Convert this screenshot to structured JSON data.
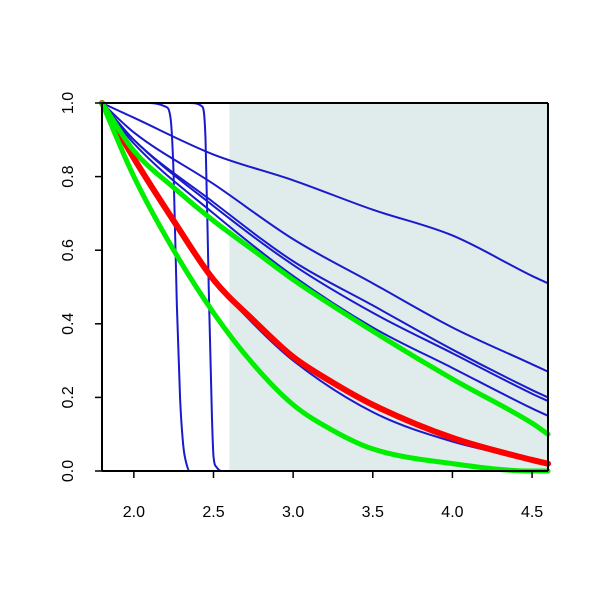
{
  "chart_data": {
    "type": "line",
    "title": "",
    "xlabel": "",
    "ylabel": "",
    "xlim": [
      1.8,
      4.6
    ],
    "ylim": [
      0.0,
      1.0
    ],
    "x_ticks": [
      2.0,
      2.5,
      3.0,
      3.5,
      4.0,
      4.5
    ],
    "x_tick_labels": [
      "2.0",
      "2.5",
      "3.0",
      "3.5",
      "4.0",
      "4.5"
    ],
    "y_ticks": [
      0.0,
      0.2,
      0.4,
      0.6,
      0.8,
      1.0
    ],
    "y_tick_labels": [
      "0.0",
      "0.2",
      "0.4",
      "0.6",
      "0.8",
      "1.0"
    ],
    "shaded_region": {
      "x_start": 2.6,
      "x_end": 4.6,
      "color": "#e0ecec"
    },
    "grid": false,
    "legend": "none",
    "colors": {
      "blue": "#1a1acd",
      "red": "#ff0000",
      "green": "#00ee00",
      "frame": "#000000"
    },
    "series": [
      {
        "color": "blue",
        "width": 2,
        "x": [
          1.8,
          2.0,
          2.5,
          3.0,
          3.5,
          4.0,
          4.5,
          4.6
        ],
        "y": [
          1.0,
          0.96,
          0.86,
          0.79,
          0.71,
          0.64,
          0.53,
          0.51
        ]
      },
      {
        "color": "blue",
        "width": 2,
        "x": [
          1.8,
          2.0,
          2.5,
          3.0,
          3.5,
          4.0,
          4.5,
          4.6
        ],
        "y": [
          1.0,
          0.92,
          0.78,
          0.63,
          0.51,
          0.39,
          0.29,
          0.27
        ]
      },
      {
        "color": "blue",
        "width": 2,
        "x": [
          1.8,
          2.0,
          2.5,
          3.0,
          3.5,
          4.0,
          4.5,
          4.6
        ],
        "y": [
          1.0,
          0.9,
          0.73,
          0.57,
          0.45,
          0.33,
          0.22,
          0.2
        ]
      },
      {
        "color": "blue",
        "width": 2,
        "x": [
          1.8,
          2.0,
          2.5,
          3.0,
          3.5,
          4.0,
          4.5,
          4.6
        ],
        "y": [
          1.0,
          0.9,
          0.72,
          0.56,
          0.43,
          0.32,
          0.21,
          0.19
        ]
      },
      {
        "color": "blue",
        "width": 2,
        "x": [
          1.8,
          2.0,
          2.5,
          3.0,
          3.5,
          4.0,
          4.5,
          4.6
        ],
        "y": [
          1.0,
          0.89,
          0.7,
          0.53,
          0.39,
          0.28,
          0.17,
          0.15
        ]
      },
      {
        "color": "blue",
        "width": 2,
        "x": [
          1.8,
          2.0,
          2.25,
          2.5,
          2.75,
          3.0,
          3.5,
          4.0,
          4.5,
          4.6
        ],
        "y": [
          1.0,
          0.85,
          0.67,
          0.52,
          0.4,
          0.3,
          0.16,
          0.08,
          0.03,
          0.02
        ]
      },
      {
        "color": "blue",
        "width": 2,
        "x": [
          1.8,
          2.1,
          2.2,
          2.23,
          2.25,
          2.27,
          2.29,
          2.31,
          2.33,
          2.35,
          2.4,
          4.6
        ],
        "y": [
          1.0,
          1.0,
          0.99,
          0.96,
          0.8,
          0.45,
          0.2,
          0.07,
          0.02,
          0.0,
          0.0,
          0.0
        ]
      },
      {
        "color": "blue",
        "width": 2,
        "x": [
          1.8,
          2.35,
          2.43,
          2.45,
          2.47,
          2.49,
          2.5,
          2.52,
          2.55,
          4.6
        ],
        "y": [
          1.0,
          1.0,
          0.99,
          0.9,
          0.5,
          0.15,
          0.04,
          0.01,
          0.0,
          0.0
        ]
      },
      {
        "color": "red",
        "width": 6,
        "x": [
          1.8,
          2.0,
          2.25,
          2.5,
          2.75,
          3.0,
          3.25,
          3.5,
          4.0,
          4.5,
          4.6
        ],
        "y": [
          1.0,
          0.85,
          0.68,
          0.52,
          0.41,
          0.31,
          0.24,
          0.18,
          0.09,
          0.03,
          0.02
        ]
      },
      {
        "color": "green",
        "width": 5,
        "x": [
          1.8,
          2.0,
          2.25,
          2.5,
          2.75,
          3.0,
          3.5,
          4.0,
          4.5,
          4.6
        ],
        "y": [
          1.0,
          0.87,
          0.77,
          0.68,
          0.6,
          0.52,
          0.38,
          0.25,
          0.13,
          0.1
        ]
      },
      {
        "color": "green",
        "width": 5,
        "x": [
          1.8,
          2.0,
          2.25,
          2.5,
          2.75,
          3.0,
          3.25,
          3.5,
          4.0,
          4.5,
          4.6
        ],
        "y": [
          1.0,
          0.8,
          0.6,
          0.43,
          0.29,
          0.18,
          0.11,
          0.06,
          0.02,
          0.0,
          0.0
        ]
      }
    ]
  }
}
